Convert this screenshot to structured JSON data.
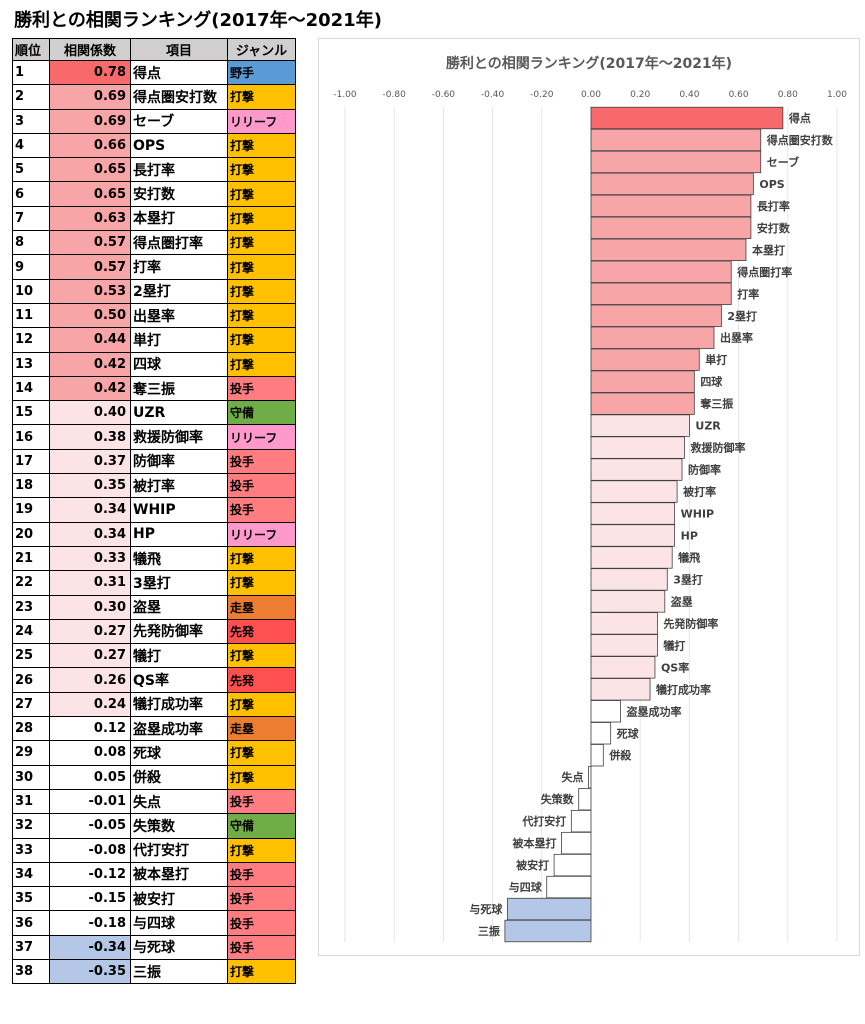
{
  "page": {
    "title": "勝利との相関ランキング(2017年～2021年)"
  },
  "table": {
    "headers": {
      "rank": "順位",
      "corr": "相関係数",
      "item": "項目",
      "genre": "ジャンル"
    },
    "genre_colors": {
      "野手": "#5b9bd5",
      "打撃": "#ffc000",
      "リリーフ": "#ff99cc",
      "投手": "#ff7c80",
      "守備": "#70ad47",
      "走塁": "#ed7d31",
      "先発": "#ff5050"
    },
    "rows": [
      {
        "rank": "1",
        "corr": "0.78",
        "item": "得点",
        "genre": "野手"
      },
      {
        "rank": "2",
        "corr": "0.69",
        "item": "得点圏安打数",
        "genre": "打撃"
      },
      {
        "rank": "3",
        "corr": "0.69",
        "item": "セーブ",
        "genre": "リリーフ"
      },
      {
        "rank": "4",
        "corr": "0.66",
        "item": "OPS",
        "genre": "打撃"
      },
      {
        "rank": "5",
        "corr": "0.65",
        "item": "長打率",
        "genre": "打撃"
      },
      {
        "rank": "6",
        "corr": "0.65",
        "item": "安打数",
        "genre": "打撃"
      },
      {
        "rank": "7",
        "corr": "0.63",
        "item": "本塁打",
        "genre": "打撃"
      },
      {
        "rank": "8",
        "corr": "0.57",
        "item": "得点圏打率",
        "genre": "打撃"
      },
      {
        "rank": "9",
        "corr": "0.57",
        "item": "打率",
        "genre": "打撃"
      },
      {
        "rank": "10",
        "corr": "0.53",
        "item": "2塁打",
        "genre": "打撃"
      },
      {
        "rank": "11",
        "corr": "0.50",
        "item": "出塁率",
        "genre": "打撃"
      },
      {
        "rank": "12",
        "corr": "0.44",
        "item": "単打",
        "genre": "打撃"
      },
      {
        "rank": "13",
        "corr": "0.42",
        "item": "四球",
        "genre": "打撃"
      },
      {
        "rank": "14",
        "corr": "0.42",
        "item": "奪三振",
        "genre": "投手"
      },
      {
        "rank": "15",
        "corr": "0.40",
        "item": "UZR",
        "genre": "守備"
      },
      {
        "rank": "16",
        "corr": "0.38",
        "item": "救援防御率",
        "genre": "リリーフ"
      },
      {
        "rank": "17",
        "corr": "0.37",
        "item": "防御率",
        "genre": "投手"
      },
      {
        "rank": "18",
        "corr": "0.35",
        "item": "被打率",
        "genre": "投手"
      },
      {
        "rank": "19",
        "corr": "0.34",
        "item": "WHIP",
        "genre": "投手"
      },
      {
        "rank": "20",
        "corr": "0.34",
        "item": "HP",
        "genre": "リリーフ"
      },
      {
        "rank": "21",
        "corr": "0.33",
        "item": "犠飛",
        "genre": "打撃"
      },
      {
        "rank": "22",
        "corr": "0.31",
        "item": "3塁打",
        "genre": "打撃"
      },
      {
        "rank": "23",
        "corr": "0.30",
        "item": "盗塁",
        "genre": "走塁"
      },
      {
        "rank": "24",
        "corr": "0.27",
        "item": "先発防御率",
        "genre": "先発"
      },
      {
        "rank": "25",
        "corr": "0.27",
        "item": "犠打",
        "genre": "打撃"
      },
      {
        "rank": "26",
        "corr": "0.26",
        "item": "QS率",
        "genre": "先発"
      },
      {
        "rank": "27",
        "corr": "0.24",
        "item": "犠打成功率",
        "genre": "打撃"
      },
      {
        "rank": "28",
        "corr": "0.12",
        "item": "盗塁成功率",
        "genre": "走塁"
      },
      {
        "rank": "29",
        "corr": "0.08",
        "item": "死球",
        "genre": "打撃"
      },
      {
        "rank": "30",
        "corr": "0.05",
        "item": "併殺",
        "genre": "打撃"
      },
      {
        "rank": "31",
        "corr": "-0.01",
        "item": "失点",
        "genre": "投手"
      },
      {
        "rank": "32",
        "corr": "-0.05",
        "item": "失策数",
        "genre": "守備"
      },
      {
        "rank": "33",
        "corr": "-0.08",
        "item": "代打安打",
        "genre": "打撃"
      },
      {
        "rank": "34",
        "corr": "-0.12",
        "item": "被本塁打",
        "genre": "投手"
      },
      {
        "rank": "35",
        "corr": "-0.15",
        "item": "被安打",
        "genre": "投手"
      },
      {
        "rank": "36",
        "corr": "-0.18",
        "item": "与四球",
        "genre": "投手"
      },
      {
        "rank": "37",
        "corr": "-0.34",
        "item": "与死球",
        "genre": "投手"
      },
      {
        "rank": "38",
        "corr": "-0.35",
        "item": "三振",
        "genre": "打撃"
      }
    ],
    "corr_colors": {
      "strong": "#f8696b",
      "high": "#f8a5a7",
      "mid": "#fce4e6",
      "low": "#ffffff",
      "negative": "#b4c7e7"
    }
  },
  "chart_data": {
    "type": "bar",
    "orientation": "horizontal",
    "title": "勝利との相関ランキング(2017年～2021年)",
    "xlim": [
      -1.0,
      1.0
    ],
    "xticks": [
      "-1.00",
      "-0.80",
      "-0.60",
      "-0.40",
      "-0.20",
      "0.00",
      "0.20",
      "0.40",
      "0.60",
      "0.80",
      "1.00"
    ],
    "grid": true,
    "categories": [
      "得点",
      "得点圏安打数",
      "セーブ",
      "OPS",
      "長打率",
      "安打数",
      "本塁打",
      "得点圏打率",
      "打率",
      "2塁打",
      "出塁率",
      "単打",
      "四球",
      "奪三振",
      "UZR",
      "救援防御率",
      "防御率",
      "被打率",
      "WHIP",
      "HP",
      "犠飛",
      "3塁打",
      "盗塁",
      "先発防御率",
      "犠打",
      "QS率",
      "犠打成功率",
      "盗塁成功率",
      "死球",
      "併殺",
      "失点",
      "失策数",
      "代打安打",
      "被本塁打",
      "被安打",
      "与四球",
      "与死球",
      "三振"
    ],
    "values": [
      0.78,
      0.69,
      0.69,
      0.66,
      0.65,
      0.65,
      0.63,
      0.57,
      0.57,
      0.53,
      0.5,
      0.44,
      0.42,
      0.42,
      0.4,
      0.38,
      0.37,
      0.35,
      0.34,
      0.34,
      0.33,
      0.31,
      0.3,
      0.27,
      0.27,
      0.26,
      0.24,
      0.12,
      0.08,
      0.05,
      -0.01,
      -0.05,
      -0.08,
      -0.12,
      -0.15,
      -0.18,
      -0.34,
      -0.35
    ],
    "bar_colors": {
      "strong": "#f8696b",
      "high": "#f8a5a7",
      "mid": "#fce4e6",
      "low": "#ffffff",
      "negative": "#b4c7e7"
    }
  }
}
